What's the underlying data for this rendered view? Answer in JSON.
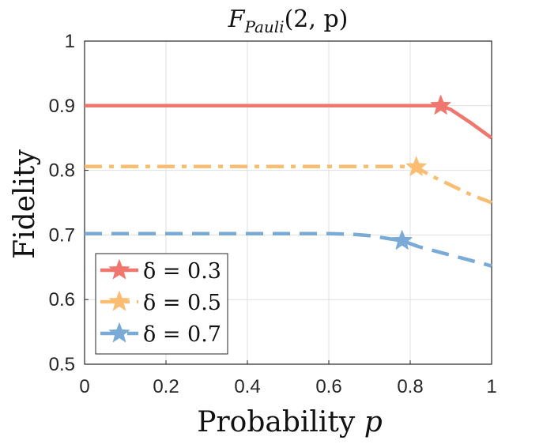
{
  "chart_data": {
    "type": "line",
    "title_main": "F",
    "title_sub": "Pauli",
    "title_args": "(2, p)",
    "xlabel": "Probability",
    "xlabel_var": "p",
    "ylabel": "Fidelity",
    "xlim": [
      0,
      1
    ],
    "ylim": [
      0.5,
      1
    ],
    "xticks": [
      "0",
      "0.2",
      "0.4",
      "0.6",
      "0.8",
      "1"
    ],
    "yticks": [
      "0.5",
      "0.6",
      "0.7",
      "0.8",
      "0.9",
      "1"
    ],
    "grid": true,
    "legend_position": "bottom-left",
    "series": [
      {
        "name": "δ = 0.3",
        "color": "#f0766e",
        "line_style": "solid",
        "points": [
          [
            0,
            0.9
          ],
          [
            0.2,
            0.9
          ],
          [
            0.4,
            0.9
          ],
          [
            0.6,
            0.9
          ],
          [
            0.8,
            0.9
          ],
          [
            0.875,
            0.9
          ],
          [
            0.9,
            0.894
          ],
          [
            0.95,
            0.873
          ],
          [
            1.0,
            0.85
          ]
        ],
        "marker": {
          "x": 0.875,
          "y": 0.9
        }
      },
      {
        "name": "δ = 0.5",
        "color": "#fbbd72",
        "line_style": "dashdot",
        "points": [
          [
            0,
            0.806
          ],
          [
            0.2,
            0.806
          ],
          [
            0.4,
            0.806
          ],
          [
            0.6,
            0.806
          ],
          [
            0.78,
            0.806
          ],
          [
            0.815,
            0.805
          ],
          [
            0.85,
            0.792
          ],
          [
            0.9,
            0.777
          ],
          [
            0.95,
            0.762
          ],
          [
            1.0,
            0.75
          ]
        ],
        "marker": {
          "x": 0.815,
          "y": 0.805
        }
      },
      {
        "name": "δ = 0.7",
        "color": "#7aaad6",
        "line_style": "dashed",
        "points": [
          [
            0,
            0.702
          ],
          [
            0.2,
            0.702
          ],
          [
            0.4,
            0.702
          ],
          [
            0.6,
            0.702
          ],
          [
            0.66,
            0.701
          ],
          [
            0.7,
            0.699
          ],
          [
            0.74,
            0.695
          ],
          [
            0.78,
            0.691
          ],
          [
            0.82,
            0.682
          ],
          [
            0.88,
            0.672
          ],
          [
            0.94,
            0.662
          ],
          [
            1.0,
            0.652
          ]
        ],
        "marker": {
          "x": 0.78,
          "y": 0.691
        }
      }
    ]
  }
}
